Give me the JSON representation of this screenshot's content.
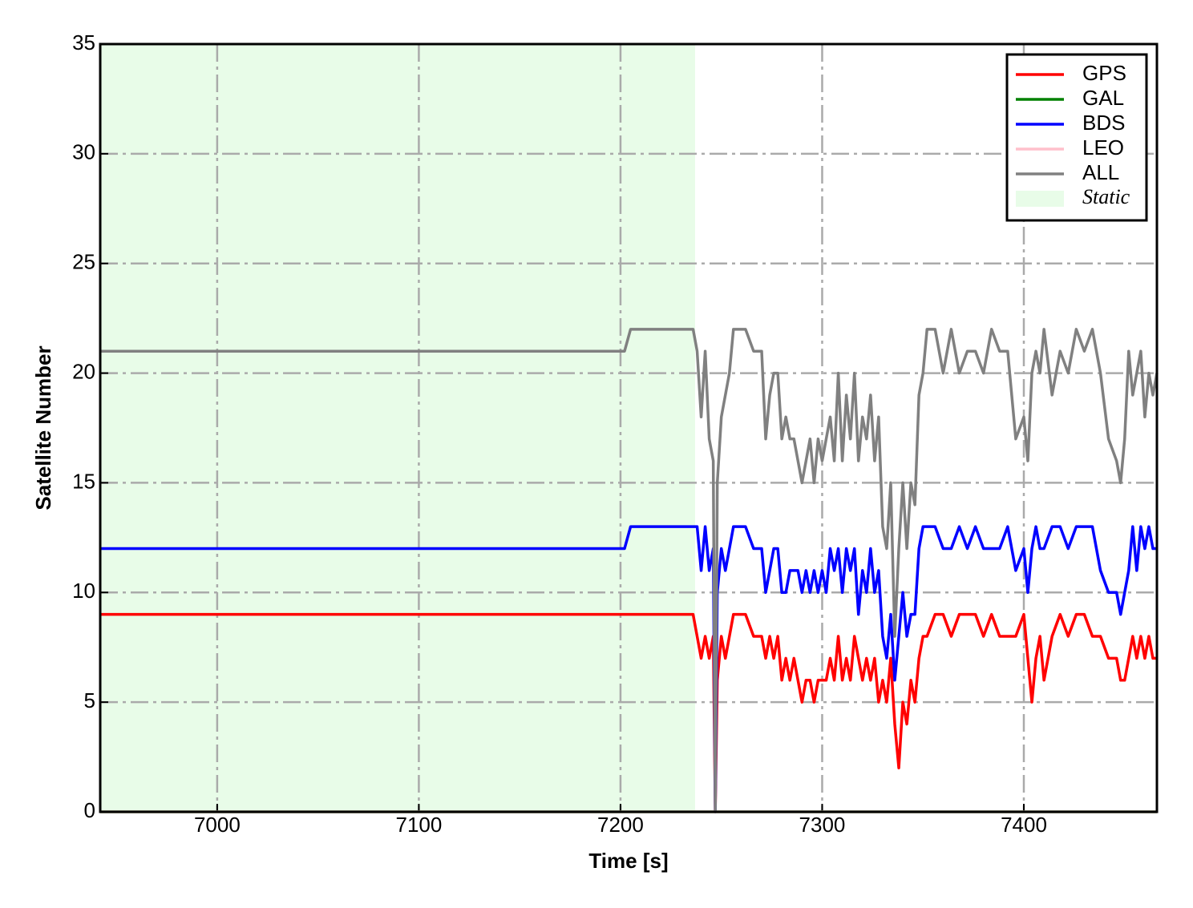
{
  "chart_data": {
    "type": "line",
    "xlabel": "Time [s]",
    "ylabel": "Satellite Number",
    "xlim": [
      6942,
      7466
    ],
    "xticks": [
      7000,
      7100,
      7200,
      7300,
      7400
    ],
    "ylim": [
      0,
      35
    ],
    "yticks": [
      0,
      5,
      10,
      15,
      20,
      25,
      30,
      35
    ],
    "grid": true,
    "legend": "upper right",
    "shaded_region": {
      "label": "Static",
      "xlim": [
        6942,
        7237
      ],
      "color": "#e8fce8"
    },
    "x": [
      6942,
      7202,
      7205,
      7236,
      7238,
      7240,
      7242,
      7244,
      7246,
      7247,
      7248,
      7250,
      7252,
      7254,
      7256,
      7258,
      7262,
      7266,
      7270,
      7272,
      7274,
      7276,
      7278,
      7280,
      7282,
      7284,
      7286,
      7288,
      7290,
      7292,
      7294,
      7296,
      7298,
      7300,
      7302,
      7304,
      7306,
      7308,
      7310,
      7312,
      7314,
      7316,
      7318,
      7320,
      7322,
      7324,
      7326,
      7328,
      7330,
      7332,
      7334,
      7336,
      7338,
      7340,
      7342,
      7344,
      7346,
      7348,
      7350,
      7352,
      7356,
      7360,
      7364,
      7368,
      7372,
      7376,
      7380,
      7384,
      7388,
      7392,
      7396,
      7400,
      7402,
      7404,
      7406,
      7408,
      7410,
      7414,
      7418,
      7422,
      7426,
      7430,
      7434,
      7438,
      7442,
      7446,
      7448,
      7450,
      7452,
      7454,
      7456,
      7458,
      7460,
      7462,
      7464,
      7466
    ],
    "series": [
      {
        "name": "GPS",
        "color": "#ff0000",
        "values": [
          9,
          9,
          9,
          9,
          8,
          7,
          8,
          7,
          8,
          0,
          6,
          8,
          7,
          8,
          9,
          9,
          9,
          8,
          8,
          7,
          8,
          7,
          8,
          6,
          7,
          6,
          7,
          6,
          5,
          6,
          6,
          5,
          6,
          6,
          6,
          7,
          6,
          8,
          6,
          7,
          6,
          8,
          7,
          6,
          7,
          6,
          7,
          5,
          6,
          5,
          7,
          4,
          2,
          5,
          4,
          6,
          5,
          7,
          8,
          8,
          9,
          9,
          8,
          9,
          9,
          9,
          8,
          9,
          8,
          8,
          8,
          9,
          7,
          5,
          7,
          8,
          6,
          8,
          9,
          8,
          9,
          9,
          8,
          8,
          7,
          7,
          6,
          6,
          7,
          8,
          7,
          8,
          7,
          8,
          7,
          7
        ]
      },
      {
        "name": "GAL",
        "color": "#008000",
        "values": [
          0,
          0,
          0,
          0,
          0,
          0,
          0,
          0,
          0,
          0,
          0,
          0,
          0,
          0,
          0,
          0,
          0,
          0,
          0,
          0,
          0,
          0,
          0,
          0,
          0,
          0,
          0,
          0,
          0,
          0,
          0,
          0,
          0,
          0,
          0,
          0,
          0,
          0,
          0,
          0,
          0,
          0,
          0,
          0,
          0,
          0,
          0,
          0,
          0,
          0,
          0,
          0,
          0,
          0,
          0,
          0,
          0,
          0,
          0,
          0,
          0,
          0,
          0,
          0,
          0,
          0,
          0,
          0,
          0,
          0,
          0,
          0,
          0,
          0,
          0,
          0,
          0,
          0,
          0,
          0,
          0,
          0,
          0,
          0,
          0,
          0,
          0,
          0,
          0,
          0,
          0,
          0,
          0,
          0,
          0,
          0
        ]
      },
      {
        "name": "BDS",
        "color": "#0000ff",
        "values": [
          12,
          12,
          13,
          13,
          13,
          11,
          13,
          11,
          12,
          0,
          10,
          12,
          11,
          12,
          13,
          13,
          13,
          12,
          12,
          10,
          11,
          12,
          12,
          10,
          10,
          11,
          11,
          11,
          10,
          11,
          10,
          11,
          10,
          11,
          10,
          12,
          11,
          12,
          10,
          12,
          11,
          12,
          9,
          11,
          10,
          12,
          10,
          11,
          8,
          7,
          9,
          6,
          8,
          10,
          8,
          9,
          9,
          12,
          13,
          13,
          13,
          12,
          12,
          13,
          12,
          13,
          12,
          12,
          12,
          13,
          11,
          12,
          10,
          12,
          13,
          12,
          12,
          13,
          13,
          12,
          13,
          13,
          13,
          11,
          10,
          10,
          9,
          10,
          11,
          13,
          11,
          13,
          12,
          13,
          12,
          12
        ]
      },
      {
        "name": "LEO",
        "color": "#ffc0cb",
        "values": [
          0,
          0,
          0,
          0,
          0,
          0,
          0,
          0,
          0,
          0,
          0,
          0,
          0,
          0,
          0,
          0,
          0,
          0,
          0,
          0,
          0,
          0,
          0,
          0,
          0,
          0,
          0,
          0,
          0,
          0,
          0,
          0,
          0,
          0,
          0,
          0,
          0,
          0,
          0,
          0,
          0,
          0,
          0,
          0,
          0,
          0,
          0,
          0,
          0,
          0,
          0,
          0,
          0,
          0,
          0,
          0,
          0,
          0,
          0,
          0,
          0,
          0,
          0,
          0,
          0,
          0,
          0,
          0,
          0,
          0,
          0,
          0,
          0,
          0,
          0,
          0,
          0,
          0,
          0,
          0,
          0,
          0,
          0,
          0,
          0,
          0,
          0,
          0,
          0,
          0,
          0,
          0,
          0,
          0,
          0,
          0
        ]
      },
      {
        "name": "ALL",
        "color": "#808080",
        "values": [
          21,
          21,
          22,
          22,
          21,
          18,
          21,
          17,
          16,
          0,
          15,
          18,
          19,
          20,
          22,
          22,
          22,
          21,
          21,
          17,
          19,
          20,
          20,
          17,
          18,
          17,
          17,
          16,
          15,
          16,
          17,
          15,
          17,
          16,
          17,
          18,
          16,
          20,
          16,
          19,
          17,
          20,
          16,
          18,
          17,
          19,
          16,
          18,
          13,
          12,
          15,
          8,
          12,
          15,
          12,
          15,
          14,
          19,
          20,
          22,
          22,
          20,
          22,
          20,
          21,
          21,
          20,
          22,
          21,
          21,
          17,
          18,
          16,
          20,
          21,
          20,
          22,
          19,
          21,
          20,
          22,
          21,
          22,
          20,
          17,
          16,
          15,
          17,
          21,
          19,
          20,
          21,
          18,
          20,
          19,
          20
        ]
      }
    ]
  }
}
